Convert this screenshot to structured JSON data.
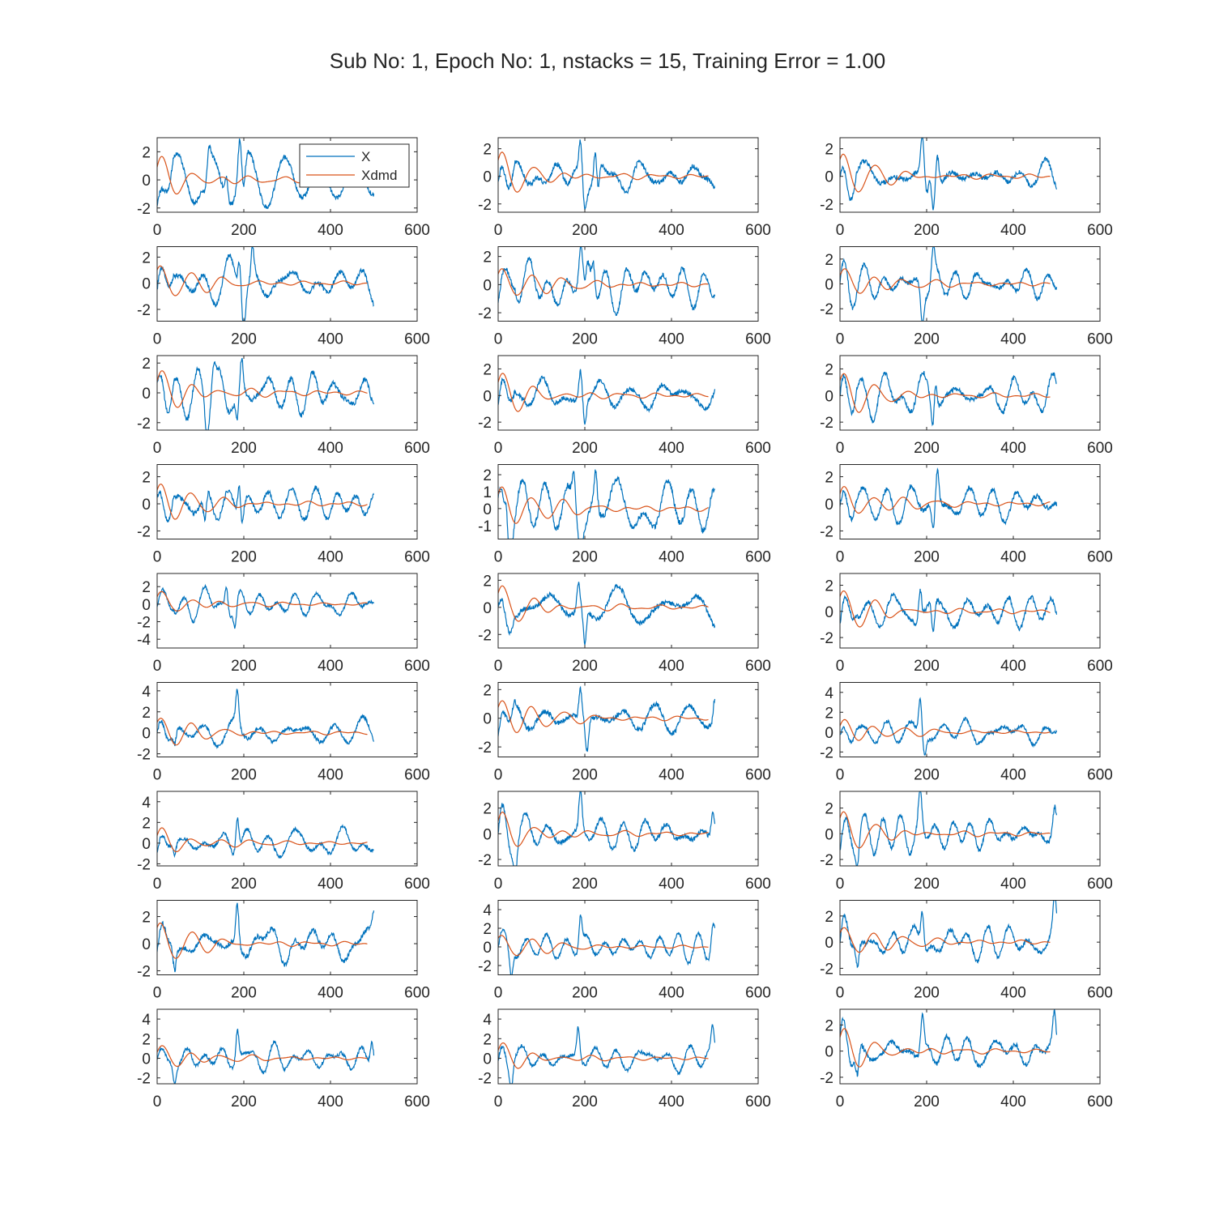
{
  "figure": {
    "title": "Sub No: 1, Epoch No: 1, nstacks = 15, Training Error = 1.00",
    "colors": {
      "X": "#0072BD",
      "Xdmd": "#D95319",
      "axis": "#262626",
      "background": "#ffffff"
    }
  },
  "chart_data": {
    "type": "line",
    "layout": {
      "rows": 9,
      "cols": 3
    },
    "title": "Sub No: 1, Epoch No: 1, nstacks = 15, Training Error = 1.00",
    "series_names": [
      "X",
      "Xdmd"
    ],
    "legend": {
      "subplot": 1,
      "placement": "top-right",
      "entries": [
        "X",
        "Xdmd"
      ]
    },
    "xlim": [
      0,
      600
    ],
    "xticks": [
      0,
      200,
      400,
      600
    ],
    "x_range_X": [
      0,
      500
    ],
    "x_range_Xdmd": [
      0,
      485
    ],
    "grid": false,
    "subplots": [
      {
        "ylim": [
          -2.3,
          3.0
        ],
        "yticks": [
          -2,
          0,
          2
        ],
        "peaks": [
          [
            190,
            3.0
          ],
          [
            160,
            2.0
          ],
          [
            120,
            1.5
          ]
        ],
        "troughs": [
          [
            200,
            -2.3
          ],
          [
            110,
            -1.5
          ]
        ]
      },
      {
        "ylim": [
          -2.6,
          2.8
        ],
        "yticks": [
          -2,
          0,
          2
        ],
        "peaks": [
          [
            190,
            2.8
          ],
          [
            225,
            2.4
          ]
        ],
        "troughs": [
          [
            200,
            -2.0
          ],
          [
            230,
            -2.5
          ]
        ]
      },
      {
        "ylim": [
          -2.6,
          2.8
        ],
        "yticks": [
          -2,
          0,
          2
        ],
        "peaks": [
          [
            190,
            2.8
          ],
          [
            225,
            2.4
          ]
        ],
        "troughs": [
          [
            200,
            -2.0
          ],
          [
            215,
            -2.5
          ]
        ]
      },
      {
        "ylim": [
          -2.9,
          2.8
        ],
        "yticks": [
          -2,
          0,
          2
        ],
        "peaks": [
          [
            190,
            2.8
          ],
          [
            220,
            2.6
          ]
        ],
        "troughs": [
          [
            200,
            -2.9
          ]
        ]
      },
      {
        "ylim": [
          -2.6,
          2.7
        ],
        "yticks": [
          -2,
          0,
          2
        ],
        "peaks": [
          [
            220,
            2.6
          ],
          [
            190,
            2.2
          ]
        ],
        "troughs": [
          [
            200,
            -2.3
          ]
        ]
      },
      {
        "ylim": [
          -3.0,
          3.0
        ],
        "yticks": [
          -2,
          0,
          2
        ],
        "peaks": [
          [
            215,
            2.8
          ]
        ],
        "troughs": [
          [
            190,
            -3.0
          ]
        ]
      },
      {
        "ylim": [
          -2.5,
          2.5
        ],
        "yticks": [
          -2,
          0,
          2
        ],
        "peaks": [
          [
            195,
            2.3
          ],
          [
            130,
            2.1
          ]
        ],
        "troughs": [
          [
            115,
            -2.4
          ],
          [
            185,
            -2.3
          ]
        ]
      },
      {
        "ylim": [
          -2.6,
          3.0
        ],
        "yticks": [
          -2,
          0,
          2
        ],
        "peaks": [
          [
            190,
            2.5
          ]
        ],
        "troughs": [
          [
            200,
            -2.3
          ]
        ]
      },
      {
        "ylim": [
          -2.6,
          3.0
        ],
        "yticks": [
          -2,
          0,
          2
        ],
        "peaks": [
          [
            220,
            3.0
          ]
        ],
        "troughs": [
          [
            215,
            -2.6
          ]
        ]
      },
      {
        "ylim": [
          -2.6,
          2.9
        ],
        "yticks": [
          -2,
          0,
          2
        ],
        "peaks": [
          [
            190,
            2.9
          ]
        ],
        "troughs": [
          [
            110,
            -2.5
          ],
          [
            195,
            -2.0
          ]
        ]
      },
      {
        "ylim": [
          -1.8,
          2.6
        ],
        "yticks": [
          -1,
          0,
          1,
          2
        ],
        "peaks": [
          [
            20,
            2.6
          ],
          [
            175,
            2.4
          ],
          [
            225,
            2.4
          ]
        ],
        "troughs": [
          [
            25,
            -1.6
          ],
          [
            190,
            -1.7
          ]
        ]
      },
      {
        "ylim": [
          -2.6,
          2.9
        ],
        "yticks": [
          -2,
          0,
          2
        ],
        "peaks": [
          [
            225,
            2.8
          ]
        ],
        "troughs": [
          [
            215,
            -2.5
          ]
        ]
      },
      {
        "ylim": [
          -5.0,
          3.5
        ],
        "yticks": [
          -4,
          -2,
          0,
          2
        ],
        "peaks": [
          [
            160,
            3.3
          ]
        ],
        "troughs": [
          [
            180,
            -3.0
          ]
        ]
      },
      {
        "ylim": [
          -3.0,
          2.5
        ],
        "yticks": [
          -2,
          0,
          2
        ],
        "peaks": [
          [
            185,
            2.4
          ]
        ],
        "troughs": [
          [
            200,
            -3.0
          ]
        ]
      },
      {
        "ylim": [
          -2.8,
          2.9
        ],
        "yticks": [
          -2,
          0,
          2
        ],
        "peaks": [
          [
            185,
            2.8
          ]
        ],
        "troughs": [
          [
            215,
            -2.8
          ]
        ]
      },
      {
        "ylim": [
          -2.3,
          4.8
        ],
        "yticks": [
          -2,
          0,
          2,
          4
        ],
        "peaks": [
          [
            185,
            3.6
          ]
        ],
        "troughs": [
          [
            40,
            -2.0
          ]
        ]
      },
      {
        "ylim": [
          -2.7,
          2.5
        ],
        "yticks": [
          -2,
          0,
          2
        ],
        "peaks": [
          [
            190,
            2.4
          ],
          [
            500,
            2.1
          ]
        ],
        "troughs": [
          [
            205,
            -2.6
          ]
        ]
      },
      {
        "ylim": [
          -2.5,
          5.0
        ],
        "yticks": [
          -2,
          0,
          2,
          4
        ],
        "peaks": [
          [
            185,
            4.0
          ]
        ],
        "troughs": [
          [
            195,
            -2.2
          ]
        ]
      },
      {
        "ylim": [
          -2.2,
          5.0
        ],
        "yticks": [
          -2,
          0,
          2,
          4
        ],
        "peaks": [
          [
            185,
            4.0
          ]
        ],
        "troughs": [
          [
            40,
            -2.0
          ]
        ]
      },
      {
        "ylim": [
          -2.5,
          3.3
        ],
        "yticks": [
          -2,
          0,
          2
        ],
        "peaks": [
          [
            190,
            3.3
          ],
          [
            495,
            2.3
          ]
        ],
        "troughs": [
          [
            40,
            -2.3
          ]
        ]
      },
      {
        "ylim": [
          -2.5,
          3.3
        ],
        "yticks": [
          -2,
          0,
          2
        ],
        "peaks": [
          [
            185,
            3.2
          ],
          [
            495,
            2.0
          ]
        ],
        "troughs": [
          [
            40,
            -2.3
          ]
        ]
      },
      {
        "ylim": [
          -2.3,
          3.2
        ],
        "yticks": [
          -2,
          0,
          2
        ],
        "peaks": [
          [
            185,
            3.2
          ],
          [
            500,
            2.1
          ]
        ],
        "troughs": [
          [
            40,
            -2.3
          ]
        ]
      },
      {
        "ylim": [
          -3.0,
          5.0
        ],
        "yticks": [
          -2,
          0,
          2,
          4
        ],
        "peaks": [
          [
            190,
            3.8
          ],
          [
            495,
            2.6
          ]
        ],
        "troughs": [
          [
            30,
            -2.7
          ]
        ]
      },
      {
        "ylim": [
          -2.5,
          3.2
        ],
        "yticks": [
          -2,
          0,
          2
        ],
        "peaks": [
          [
            190,
            3.2
          ],
          [
            495,
            2.7
          ]
        ],
        "troughs": [
          [
            40,
            -2.5
          ]
        ]
      },
      {
        "ylim": [
          -2.6,
          5.0
        ],
        "yticks": [
          -2,
          0,
          2,
          4
        ],
        "peaks": [
          [
            185,
            3.6
          ],
          [
            495,
            2.7
          ]
        ],
        "troughs": [
          [
            40,
            -2.5
          ]
        ]
      },
      {
        "ylim": [
          -2.6,
          5.0
        ],
        "yticks": [
          -2,
          0,
          2,
          4
        ],
        "peaks": [
          [
            185,
            3.5
          ],
          [
            495,
            3.0
          ]
        ],
        "troughs": [
          [
            30,
            -2.4
          ]
        ]
      },
      {
        "ylim": [
          -2.5,
          3.2
        ],
        "yticks": [
          -2,
          0,
          2
        ],
        "peaks": [
          [
            190,
            3.2
          ],
          [
            495,
            2.9
          ]
        ],
        "troughs": [
          [
            40,
            -2.5
          ]
        ]
      }
    ]
  }
}
